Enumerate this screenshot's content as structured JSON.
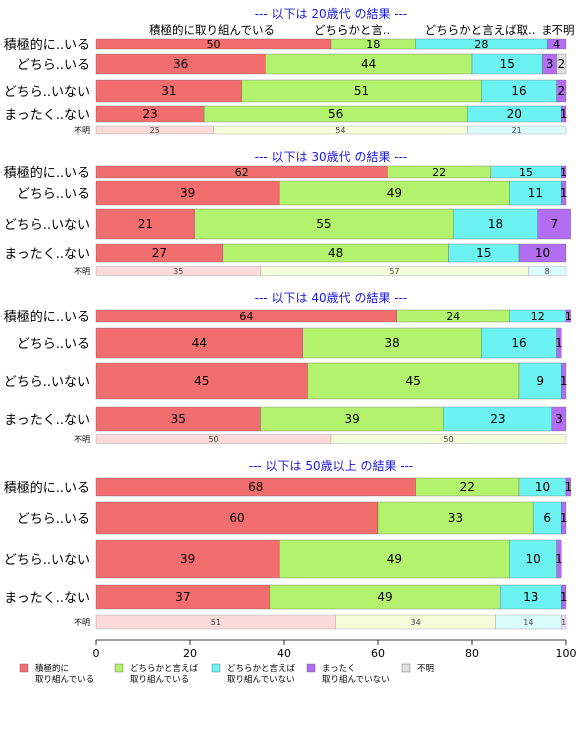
{
  "chart_data": {
    "type": "bar",
    "orientation": "horizontal-stacked-100",
    "title": "",
    "xlabel": "",
    "ylabel": "",
    "xlim": [
      0,
      100
    ],
    "x_ticks": [
      "0",
      "20",
      "40",
      "60",
      "80",
      "100"
    ],
    "colors": [
      "#f26d6d",
      "#b3f26d",
      "#6df2f2",
      "#b36df2",
      "#dedede"
    ],
    "legend": {
      "position": "bottom",
      "entries": [
        "積極的に\n取り組んでいる",
        "どちらかと言えば\n取り組んでいる",
        "どちらかと言えば\n取り組んでいない",
        "まったく\n取り組んでいない",
        "不明"
      ]
    },
    "top_header_labels": [
      "積極的に取り組んでいる",
      "どちらかと言..",
      "どちらかと言えば取..",
      "ま",
      "不明"
    ],
    "panels": [
      {
        "title": "--- 以下は 20歳代 の結果 ---",
        "rows": [
          {
            "label": "積極的に..いる",
            "values": [
              50,
              18,
              28,
              4
            ],
            "labels": [
              "50",
              "18",
              "28",
              "4"
            ]
          },
          {
            "label": "どちら..いる",
            "values": [
              36,
              44,
              15,
              3,
              2
            ],
            "labels": [
              "36",
              "44",
              "15",
              "3",
              "2"
            ]
          },
          {
            "label": "どちら..いない",
            "values": [
              31,
              51,
              16,
              2
            ],
            "labels": [
              "31",
              "51",
              "16",
              "2"
            ]
          },
          {
            "label": "まったく..ない",
            "values": [
              23,
              56,
              20,
              1
            ],
            "labels": [
              "23",
              "56",
              "20",
              "1"
            ]
          }
        ],
        "unknown": {
          "label": "不明",
          "values": [
            25,
            54,
            21
          ],
          "labels": [
            "25",
            "54",
            "21"
          ]
        }
      },
      {
        "title": "--- 以下は 30歳代 の結果 ---",
        "rows": [
          {
            "label": "積極的に..いる",
            "values": [
              62,
              22,
              15,
              1
            ],
            "labels": [
              "62",
              "22",
              "15",
              "1"
            ]
          },
          {
            "label": "どちら..いる",
            "values": [
              39,
              49,
              11,
              1
            ],
            "labels": [
              "39",
              "49",
              "11",
              "1"
            ]
          },
          {
            "label": "どちら..いない",
            "values": [
              21,
              55,
              18,
              7
            ],
            "labels": [
              "21",
              "55",
              "18",
              "7"
            ]
          },
          {
            "label": "まったく..ない",
            "values": [
              27,
              48,
              15,
              10
            ],
            "labels": [
              "27",
              "48",
              "15",
              "10"
            ]
          }
        ],
        "unknown": {
          "label": "不明",
          "values": [
            35,
            57,
            8
          ],
          "labels": [
            "35",
            "57",
            "8"
          ]
        }
      },
      {
        "title": "--- 以下は 40歳代 の結果 ---",
        "rows": [
          {
            "label": "積極的に..いる",
            "values": [
              64,
              24,
              12,
              1
            ],
            "labels": [
              "64",
              "24",
              "12",
              "1"
            ]
          },
          {
            "label": "どちら..いる",
            "values": [
              44,
              38,
              16,
              1
            ],
            "labels": [
              "44",
              "38",
              "16",
              "1"
            ]
          },
          {
            "label": "どちら..いない",
            "values": [
              45,
              45,
              9,
              1
            ],
            "labels": [
              "45",
              "45",
              "9",
              "1"
            ]
          },
          {
            "label": "まったく..ない",
            "values": [
              35,
              39,
              23,
              3
            ],
            "labels": [
              "35",
              "39",
              "23",
              "3"
            ]
          }
        ],
        "unknown": {
          "label": "不明",
          "values": [
            50,
            50
          ],
          "labels": [
            "50",
            "50"
          ]
        }
      },
      {
        "title": "--- 以下は 50歳以上 の結果 ---",
        "rows": [
          {
            "label": "積極的に..いる",
            "values": [
              68,
              22,
              10,
              1
            ],
            "labels": [
              "68",
              "22",
              "10",
              "1"
            ]
          },
          {
            "label": "どちら..いる",
            "values": [
              60,
              33,
              6,
              1
            ],
            "labels": [
              "60",
              "33",
              "6",
              "1"
            ]
          },
          {
            "label": "どちら..いない",
            "values": [
              39,
              49,
              10,
              1
            ],
            "labels": [
              "39",
              "49",
              "10",
              "1"
            ]
          },
          {
            "label": "まったく..ない",
            "values": [
              37,
              49,
              13,
              1
            ],
            "labels": [
              "37",
              "49",
              "13",
              "1"
            ]
          }
        ],
        "unknown": {
          "label": "不明",
          "values": [
            51,
            34,
            14,
            1
          ],
          "labels": [
            "51",
            "34",
            "14",
            "1"
          ]
        }
      }
    ]
  }
}
